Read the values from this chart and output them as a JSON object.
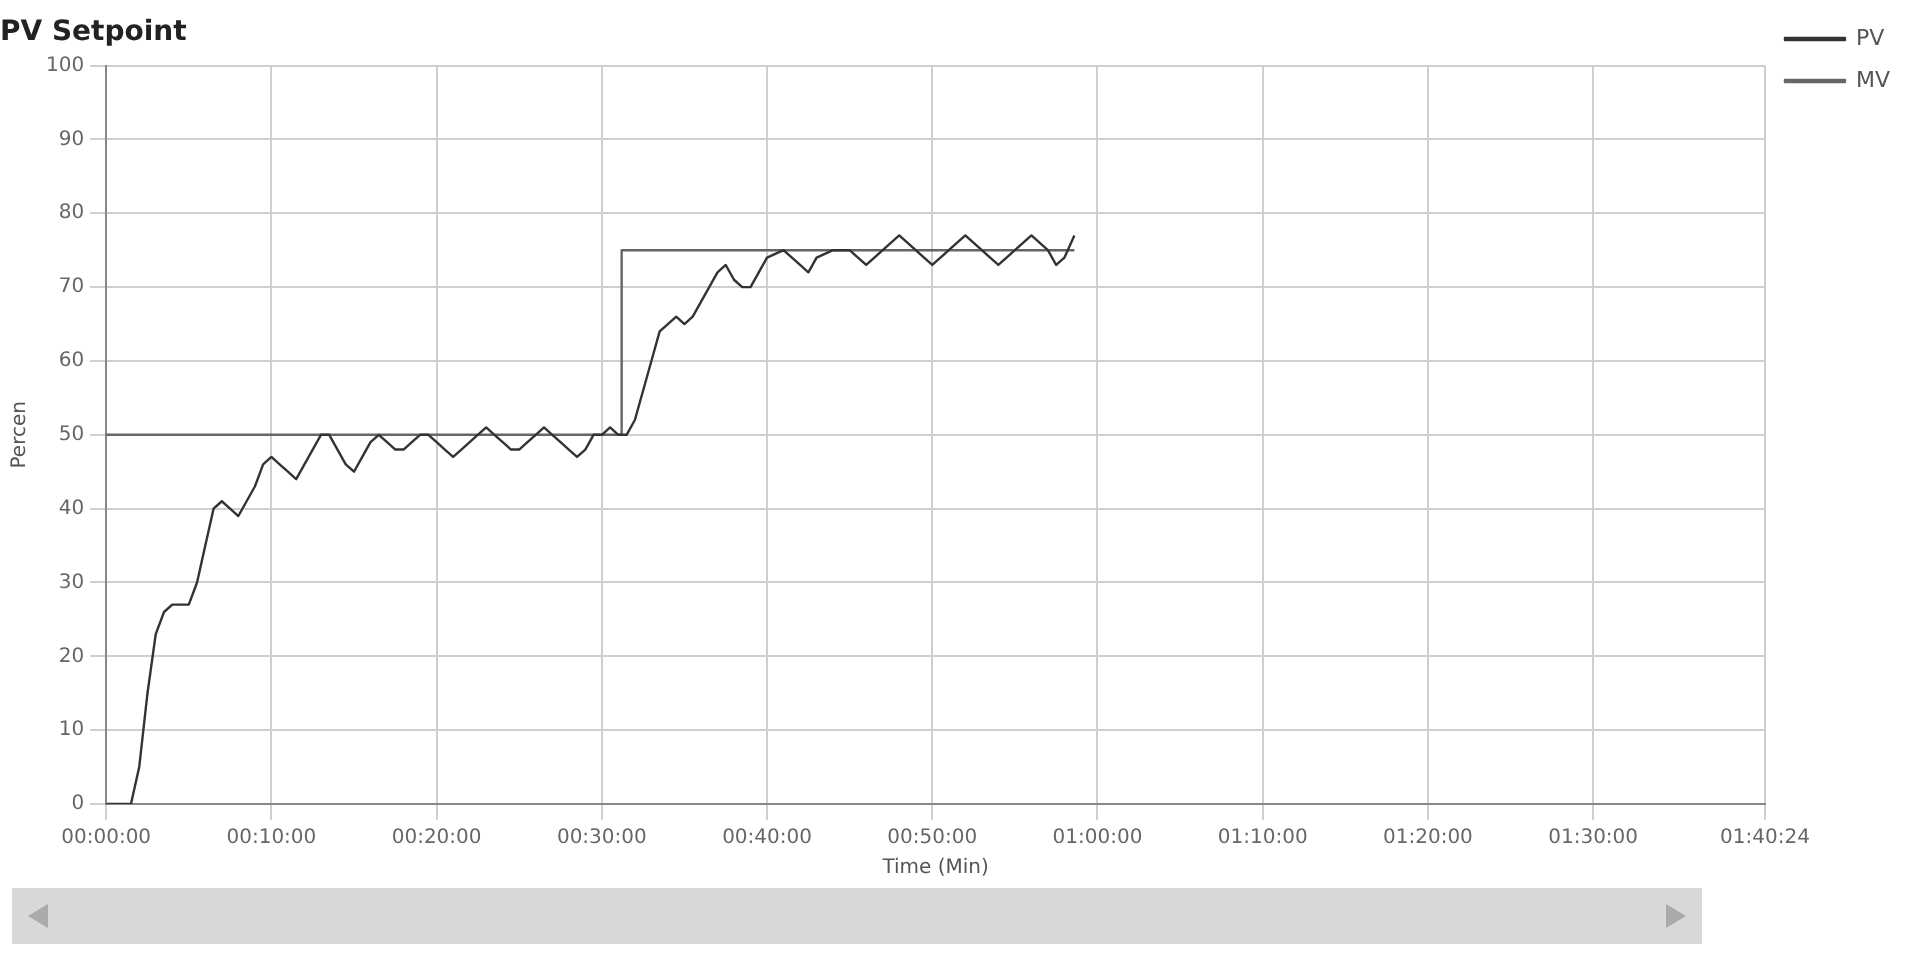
{
  "chart_data": {
    "type": "line",
    "title": "PV Setpoint",
    "xlabel": "Time (Min)",
    "ylabel": "Percen",
    "xlim": [
      0,
      100.4
    ],
    "ylim": [
      0,
      100
    ],
    "xticks": [
      {
        "value": 0,
        "label": "00:00:00"
      },
      {
        "value": 10,
        "label": "00:10:00"
      },
      {
        "value": 20,
        "label": "00:20:00"
      },
      {
        "value": 30,
        "label": "00:30:00"
      },
      {
        "value": 40,
        "label": "00:40:00"
      },
      {
        "value": 50,
        "label": "00:50:00"
      },
      {
        "value": 60,
        "label": "01:00:00"
      },
      {
        "value": 70,
        "label": "01:10:00"
      },
      {
        "value": 80,
        "label": "01:20:00"
      },
      {
        "value": 90,
        "label": "01:30:00"
      },
      {
        "value": 100.4,
        "label": "01:40:24"
      }
    ],
    "yticks": [
      0,
      10,
      20,
      30,
      40,
      50,
      60,
      70,
      80,
      90,
      100
    ],
    "grid": true,
    "legend": "top right",
    "marker": "none",
    "line_style": "solid",
    "series": [
      {
        "name": "PV",
        "color": "#333333",
        "x": [
          0,
          1,
          1.5,
          2,
          2.5,
          3,
          3.5,
          4,
          5,
          5.5,
          6,
          6.5,
          7,
          7.5,
          8,
          8.5,
          9,
          9.5,
          10,
          10.5,
          11,
          11.5,
          12,
          12.5,
          13,
          13.5,
          14,
          14.5,
          15,
          15.5,
          16,
          16.5,
          17,
          17.5,
          18,
          18.5,
          19,
          19.5,
          20,
          20.5,
          21,
          21.5,
          22,
          23,
          23.5,
          24,
          24.5,
          25,
          25.5,
          26,
          26.5,
          27,
          27.5,
          28,
          28.5,
          29,
          29.5,
          30,
          30.5,
          31,
          31.5,
          32,
          32.5,
          33,
          33.5,
          34,
          34.5,
          35,
          35.5,
          36,
          36.5,
          37,
          37.5,
          38,
          38.5,
          39,
          39.5,
          40,
          41,
          42,
          42.5,
          43,
          44,
          45,
          46,
          47,
          48,
          49,
          50,
          51,
          52,
          53,
          54,
          55,
          56,
          57,
          57.5,
          58,
          58.6
        ],
        "values": [
          0,
          0,
          0,
          5,
          15,
          23,
          26,
          27,
          27,
          30,
          35,
          40,
          41,
          40,
          39,
          41,
          43,
          46,
          47,
          46,
          45,
          44,
          46,
          48,
          50,
          50,
          48,
          46,
          45,
          47,
          49,
          50,
          49,
          48,
          48,
          49,
          50,
          50,
          49,
          48,
          47,
          48,
          49,
          51,
          50,
          49,
          48,
          48,
          49,
          50,
          51,
          50,
          49,
          48,
          47,
          48,
          50,
          50,
          51,
          50,
          50,
          52,
          56,
          60,
          64,
          65,
          66,
          65,
          66,
          68,
          70,
          72,
          73,
          71,
          70,
          70,
          72,
          74,
          75,
          73,
          72,
          74,
          75,
          75,
          73,
          75,
          77,
          75,
          73,
          75,
          77,
          75,
          73,
          75,
          77,
          75,
          73,
          74,
          77
        ]
      },
      {
        "name": "MV",
        "color": "#666666",
        "type": "step",
        "x": [
          0,
          31.2,
          31.2,
          58.6
        ],
        "values": [
          50,
          50,
          75,
          75
        ]
      }
    ]
  }
}
